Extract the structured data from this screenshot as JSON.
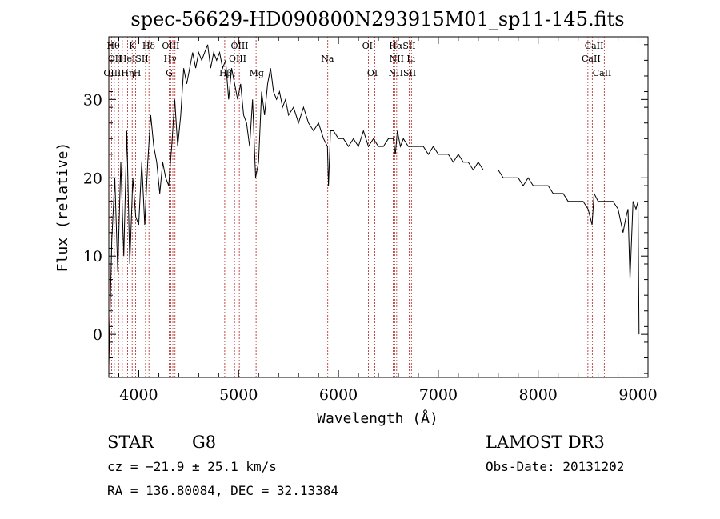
{
  "chart_data": {
    "type": "line",
    "title": "spec-56629-HD090800N293915M01_sp11-145.fits",
    "xlabel": "Wavelength (Å)",
    "ylabel": "Flux (relative)",
    "xlim": [
      3700,
      9100
    ],
    "ylim": [
      -5.5,
      38
    ],
    "xticks": [
      4000,
      5000,
      6000,
      7000,
      8000,
      9000
    ],
    "xtick_labels": [
      "4000",
      "5000",
      "6000",
      "7000",
      "8000",
      "9000"
    ],
    "yticks": [
      0,
      10,
      20,
      30
    ],
    "ytick_labels": [
      "0",
      "10",
      "20",
      "30"
    ],
    "line_color": "#000000",
    "marker_color": "#b22222",
    "series": [
      {
        "name": "spectrum",
        "x": [
          3700,
          3730,
          3760,
          3790,
          3820,
          3850,
          3880,
          3910,
          3940,
          3970,
          4000,
          4030,
          4060,
          4090,
          4120,
          4150,
          4180,
          4210,
          4240,
          4270,
          4300,
          4330,
          4360,
          4390,
          4420,
          4450,
          4480,
          4510,
          4540,
          4570,
          4600,
          4630,
          4660,
          4690,
          4720,
          4750,
          4780,
          4810,
          4840,
          4870,
          4900,
          4930,
          4960,
          4990,
          5020,
          5050,
          5080,
          5110,
          5140,
          5170,
          5200,
          5230,
          5260,
          5290,
          5320,
          5350,
          5380,
          5410,
          5440,
          5470,
          5500,
          5550,
          5600,
          5650,
          5700,
          5750,
          5800,
          5850,
          5890,
          5900,
          5920,
          5950,
          6000,
          6050,
          6100,
          6150,
          6200,
          6250,
          6300,
          6350,
          6400,
          6450,
          6500,
          6550,
          6570,
          6590,
          6620,
          6650,
          6700,
          6750,
          6800,
          6850,
          6900,
          6950,
          7000,
          7050,
          7100,
          7150,
          7200,
          7250,
          7300,
          7350,
          7400,
          7450,
          7500,
          7550,
          7600,
          7650,
          7700,
          7750,
          7800,
          7850,
          7900,
          7950,
          8000,
          8050,
          8100,
          8150,
          8200,
          8250,
          8300,
          8350,
          8400,
          8450,
          8500,
          8540,
          8560,
          8600,
          8650,
          8700,
          8750,
          8800,
          8850,
          8880,
          8900,
          8920,
          8950,
          8980,
          9000,
          9010
        ],
        "y": [
          -4,
          12,
          20,
          8,
          22,
          10,
          26,
          9,
          20,
          15,
          14,
          22,
          14,
          22,
          28,
          24,
          22,
          18,
          22,
          20,
          19,
          24,
          30,
          24,
          28,
          34,
          32,
          34,
          36,
          34,
          36,
          35,
          36,
          37,
          34,
          36,
          35,
          36,
          34,
          35,
          30,
          34,
          32,
          30,
          32,
          28,
          27,
          24,
          30,
          20,
          22,
          31,
          28,
          32,
          34,
          31,
          30,
          31,
          29,
          30,
          28,
          29,
          27,
          29,
          27,
          26,
          27,
          25,
          24,
          19,
          26,
          26,
          25,
          25,
          24,
          25,
          24,
          26,
          24,
          25,
          24,
          24,
          25,
          25,
          23,
          26,
          24,
          25,
          24,
          24,
          24,
          24,
          23,
          24,
          23,
          23,
          23,
          22,
          23,
          22,
          22,
          21,
          22,
          21,
          21,
          21,
          21,
          20,
          20,
          20,
          20,
          19,
          20,
          19,
          19,
          19,
          19,
          18,
          18,
          18,
          17,
          17,
          17,
          17,
          16,
          14,
          18,
          17,
          17,
          17,
          17,
          16,
          13,
          15,
          16,
          7,
          17,
          16,
          17,
          0
        ]
      }
    ],
    "line_markers": [
      {
        "name": "Hθ",
        "x": 3798
      },
      {
        "name": "OII",
        "x": 3727
      },
      {
        "name": "OIII",
        "x": 3755
      },
      {
        "name": "K",
        "x": 3934
      },
      {
        "name": "H",
        "x": 3969
      },
      {
        "name": "Hη",
        "x": 3835
      },
      {
        "name": "HeI",
        "x": 3889
      },
      {
        "name": "SII",
        "x": 4068
      },
      {
        "name": "Hδ",
        "x": 4102
      },
      {
        "name": "OIII",
        "x": 4320
      },
      {
        "name": "Hγ",
        "x": 4341
      },
      {
        "name": "G",
        "x": 4305
      },
      {
        "name": "OIII",
        "x": 4363
      },
      {
        "name": "Hβ",
        "x": 4861
      },
      {
        "name": "OIII",
        "x": 4959
      },
      {
        "name": "OIII",
        "x": 5007
      },
      {
        "name": "Mg",
        "x": 5175
      },
      {
        "name": "Na",
        "x": 5893
      },
      {
        "name": "OI",
        "x": 6300
      },
      {
        "name": "OI",
        "x": 6364
      },
      {
        "name": "NII",
        "x": 6548
      },
      {
        "name": "Hα",
        "x": 6563
      },
      {
        "name": "NII",
        "x": 6583
      },
      {
        "name": "Li",
        "x": 6708
      },
      {
        "name": "SII",
        "x": 6716
      },
      {
        "name": "SII",
        "x": 6731
      },
      {
        "name": "CaII",
        "x": 8498
      },
      {
        "name": "CaII",
        "x": 8542
      },
      {
        "name": "CaII",
        "x": 8662
      }
    ],
    "line_labels": [
      {
        "text": "Hθ",
        "row": 1,
        "x": 3745
      },
      {
        "text": "K",
        "x": 3935,
        "row": 1
      },
      {
        "text": "Hδ",
        "x": 4100,
        "row": 1
      },
      {
        "text": "OII",
        "x": 3760,
        "row": 2
      },
      {
        "text": "HeISII",
        "x": 3950,
        "row": 2
      },
      {
        "text": "OIIIHη",
        "x": 3800,
        "row": 3
      },
      {
        "text": "H",
        "x": 3985,
        "row": 3
      },
      {
        "text": "OIII",
        "x": 4320,
        "row": 1
      },
      {
        "text": "Hγ",
        "x": 4315,
        "row": 2
      },
      {
        "text": "G",
        "x": 4305,
        "row": 3
      },
      {
        "text": "OIII",
        "x": 5010,
        "row": 1
      },
      {
        "text": "OIII",
        "x": 4990,
        "row": 2
      },
      {
        "text": "Hβ",
        "x": 4870,
        "row": 3
      },
      {
        "text": "Mg",
        "x": 5180,
        "row": 3
      },
      {
        "text": "Na",
        "x": 5890,
        "row": 2
      },
      {
        "text": "OI",
        "x": 6290,
        "row": 1
      },
      {
        "text": "OI",
        "x": 6340,
        "row": 3
      },
      {
        "text": "HαSII",
        "x": 6640,
        "row": 1
      },
      {
        "text": "NII Li",
        "x": 6640,
        "row": 2
      },
      {
        "text": "NIISII",
        "x": 6640,
        "row": 3
      },
      {
        "text": "CaII",
        "x": 8560,
        "row": 1
      },
      {
        "text": "CaII",
        "x": 8530,
        "row": 2
      },
      {
        "text": "CaII",
        "x": 8640,
        "row": 3
      }
    ]
  },
  "info": {
    "object_class": "STAR",
    "subclass": "G8",
    "cz": "cz = −21.9 ± 25.1 km/s",
    "coords": "RA = 136.80084, DEC =  32.13384",
    "survey": "LAMOST DR3",
    "obs_date": "Obs-Date: 20131202"
  }
}
